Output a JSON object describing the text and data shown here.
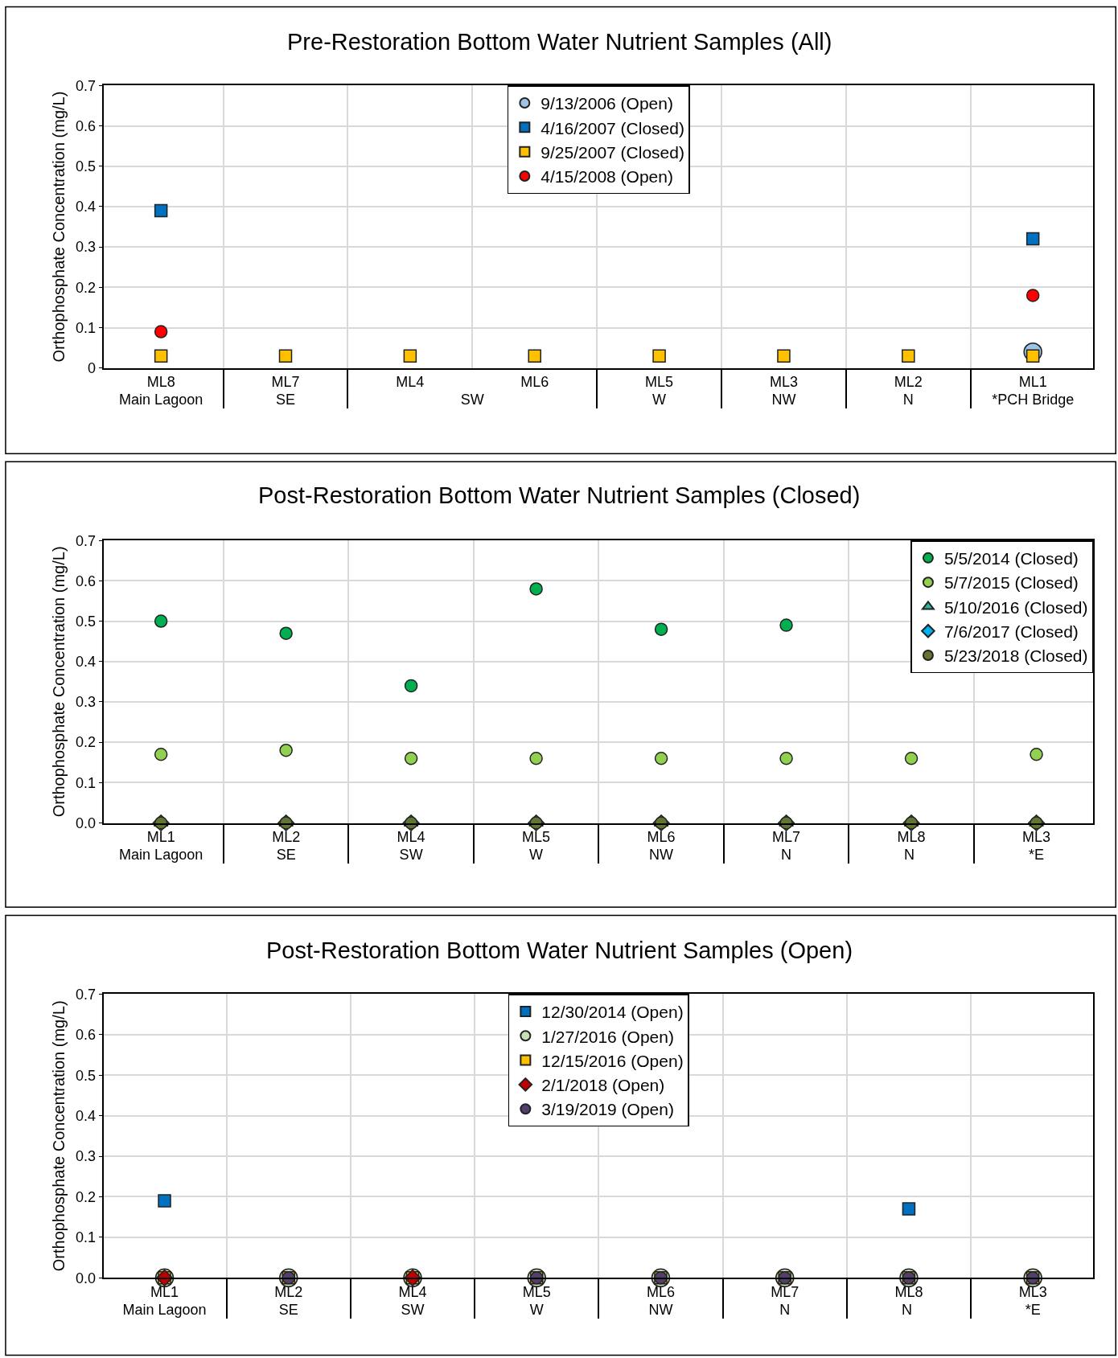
{
  "chart_data": [
    {
      "type": "scatter",
      "title": "Pre-Restoration Bottom Water Nutrient Samples (All)",
      "ylabel": "Orthophosphate Concentration (mg/L)",
      "categories": [
        "ML8\nMain Lagoon",
        "ML7\nSE",
        "ML4\nSW",
        "ML6",
        "ML5\nW",
        "ML3\nNW",
        "ML2\nN",
        "ML1\n*PCH Bridge"
      ],
      "ylim": [
        0,
        0.7
      ],
      "yticks": [
        0,
        0.1,
        0.2,
        0.3,
        0.4,
        0.5,
        0.6,
        0.7
      ],
      "grid": true,
      "legend": "top",
      "series": [
        {
          "name": "9/13/2006 (Open)",
          "color": "#9dc3e6",
          "marker": "circle",
          "values": [
            null,
            null,
            null,
            null,
            null,
            null,
            null,
            0.04
          ]
        },
        {
          "name": "4/16/2007 (Closed)",
          "color": "#0070c0",
          "marker": "square",
          "values": [
            0.39,
            null,
            null,
            null,
            null,
            null,
            null,
            0.32
          ]
        },
        {
          "name": "9/25/2007 (Closed)",
          "color": "#ffc000",
          "marker": "square",
          "values": [
            0.03,
            0.03,
            0.03,
            0.03,
            0.03,
            0.03,
            0.03,
            0.03
          ]
        },
        {
          "name": "4/15/2008 (Open)",
          "color": "#ff0000",
          "marker": "circle",
          "values": [
            0.09,
            null,
            null,
            null,
            null,
            null,
            null,
            0.18
          ]
        }
      ]
    },
    {
      "type": "scatter",
      "title": "Post-Restoration Bottom Water Nutrient Samples (Closed)",
      "ylabel": "Orthophosphate Concentration (mg/L)",
      "categories": [
        "ML1\nMain Lagoon",
        "ML2\nSE",
        "ML4\nSW",
        "ML5\nW",
        "ML6\nNW",
        "ML7\nN",
        "ML8\nN",
        "ML3\n*E"
      ],
      "ylim": [
        0,
        0.7
      ],
      "yticks": [
        {
          "value": 0,
          "label": "0.0"
        },
        0.1,
        0.2,
        0.3,
        0.4,
        0.5,
        0.6,
        0.7
      ],
      "grid": true,
      "legend": "top right",
      "series": [
        {
          "name": "5/5/2014 (Closed)",
          "color": "#00b050",
          "marker": "circle",
          "values": [
            0.5,
            0.47,
            0.34,
            0.58,
            0.48,
            0.49,
            null,
            null
          ]
        },
        {
          "name": "5/7/2015 (Closed)",
          "color": "#92d050",
          "marker": "circle",
          "values": [
            0.17,
            0.18,
            0.16,
            0.16,
            0.16,
            0.16,
            0.16,
            0.17
          ]
        },
        {
          "name": "5/10/2016 (Closed)",
          "color": "#2bb5a0",
          "marker": "triangle",
          "values": [
            0,
            0,
            0,
            0,
            0,
            0,
            0,
            0
          ]
        },
        {
          "name": "7/6/2017 (Closed)",
          "color": "#00b0f0",
          "marker": "diamond",
          "values": [
            0,
            0,
            0,
            0,
            0,
            0,
            0,
            0
          ]
        },
        {
          "name": "5/23/2018 (Closed)",
          "color": "#637532",
          "marker": "circle",
          "values": [
            0,
            0,
            0,
            0,
            0,
            0,
            0,
            0
          ]
        }
      ]
    },
    {
      "type": "scatter",
      "title": "Post-Restoration Bottom Water Nutrient Samples (Open)",
      "ylabel": "Orthophosphate Concentration (mg/L)",
      "categories": [
        "ML1\nMain Lagoon",
        "ML2\nSE",
        "ML4\nSW",
        "ML5\nW",
        "ML6\nNW",
        "ML7\nN",
        "ML8\nN",
        "ML3\n*E"
      ],
      "ylim": [
        0,
        0.7
      ],
      "yticks": [
        {
          "value": 0,
          "label": "0.0"
        },
        0.1,
        0.2,
        0.3,
        0.4,
        0.5,
        0.6,
        0.7
      ],
      "grid": true,
      "legend": "top",
      "series": [
        {
          "name": "12/30/2014 (Open)",
          "color": "#0070c0",
          "marker": "square",
          "values": [
            0.19,
            null,
            null,
            null,
            null,
            null,
            0.17,
            null
          ]
        },
        {
          "name": "1/27/2016 (Open)",
          "color": "#c5e0b4",
          "marker": "circle",
          "values": [
            0,
            0,
            0,
            0,
            0,
            0,
            0,
            0
          ]
        },
        {
          "name": "12/15/2016 (Open)",
          "color": "#ffc000",
          "marker": "square",
          "values": [
            0,
            0,
            0,
            0,
            0,
            0,
            0,
            0
          ]
        },
        {
          "name": "2/1/2018 (Open)",
          "color": "#c00000",
          "marker": "diamond",
          "values": [
            0,
            null,
            0,
            null,
            null,
            null,
            null,
            null
          ]
        },
        {
          "name": "3/19/2019 (Open)",
          "color": "#523f6b",
          "marker": "circle",
          "values": [
            null,
            0,
            null,
            0,
            0,
            0,
            0,
            0
          ]
        }
      ]
    }
  ]
}
